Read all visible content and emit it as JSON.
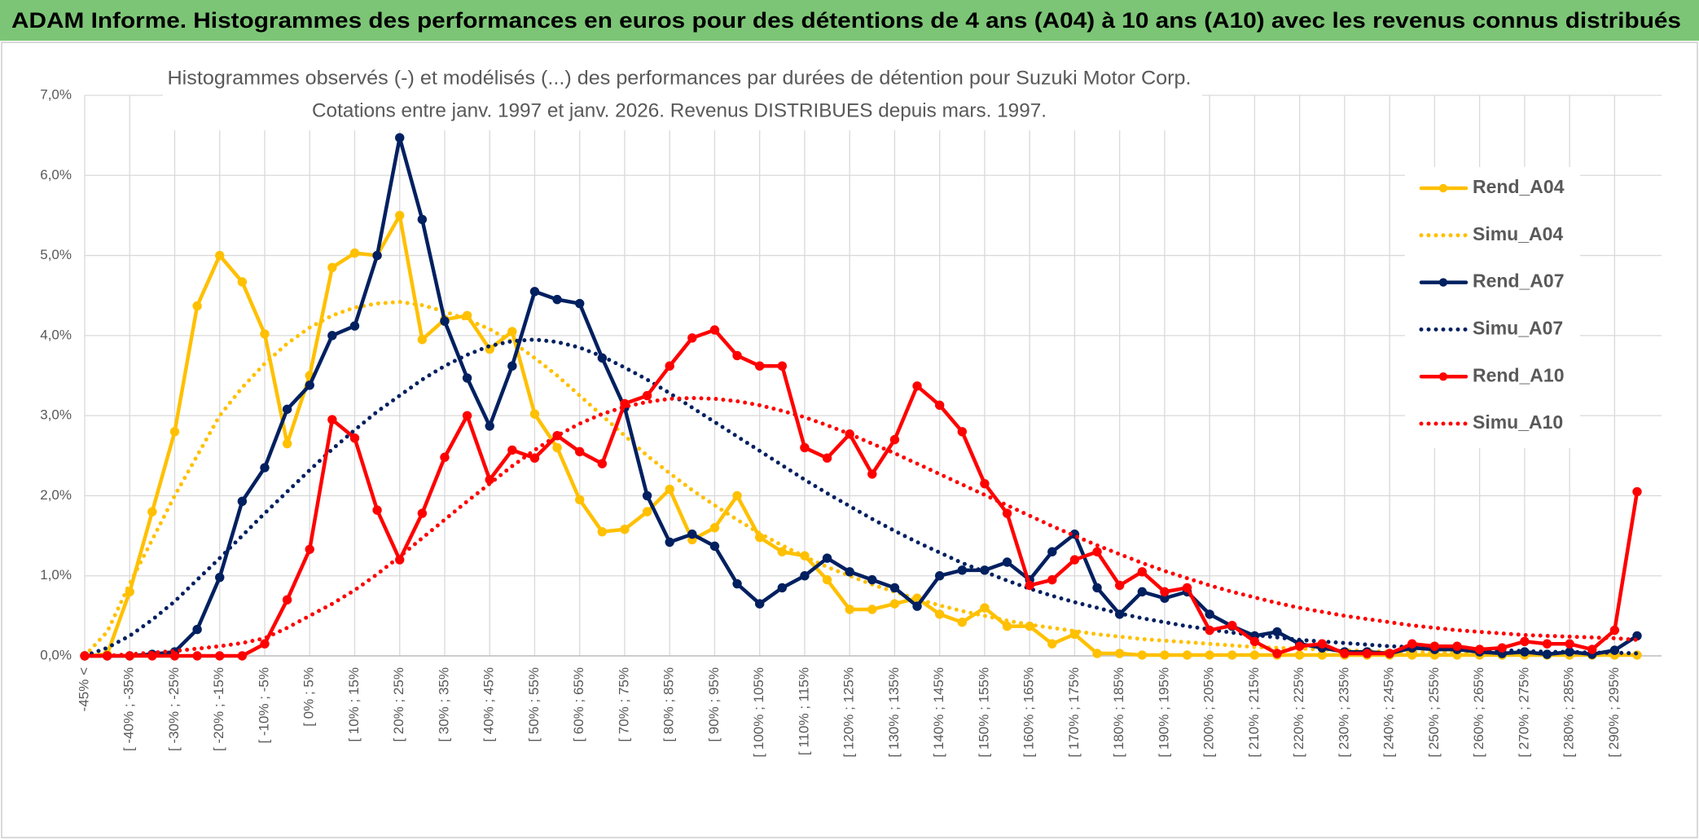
{
  "chart_data": {
    "type": "line",
    "title": "ADAM Informe. Histogrammes des performances en euros pour des détentions de 4 ans (A04) à 10 ans (A10) avec les revenus connus distribués",
    "subtitle": [
      "Histogrammes observés (-) et modélisés (...) des performances par durées de détention pour Suzuki Motor Corp.",
      "Cotations entre janv. 1997 et janv. 2026. Revenus DISTRIBUES depuis mars. 1997."
    ],
    "categories": [
      "-45% <",
      null,
      "[ -40% ; -35%",
      null,
      "[ -30% ; -25%",
      null,
      "[ -20% ; -15%",
      null,
      "[ -10% ; -5%",
      null,
      "[ 0% ; 5%",
      null,
      "[ 10% ; 15%",
      null,
      "[ 20% ; 25%",
      null,
      "[ 30% ; 35%",
      null,
      "[ 40% ; 45%",
      null,
      "[ 50% ; 55%",
      null,
      "[ 60% ; 65%",
      null,
      "[ 70% ; 75%",
      null,
      "[ 80% ; 85%",
      null,
      "[ 90% ; 95%",
      null,
      "[ 100% ; 105%",
      null,
      "[ 110% ; 115%",
      null,
      "[ 120% ; 125%",
      null,
      "[ 130% ; 135%",
      null,
      "[ 140% ; 145%",
      null,
      "[ 150% ; 155%",
      null,
      "[ 160% ; 165%",
      null,
      "[ 170% ; 175%",
      null,
      "[ 180% ; 185%",
      null,
      "[ 190% ; 195%",
      null,
      "[ 200% ; 205%",
      null,
      "[ 210% ; 215%",
      null,
      "[ 220% ; 225%",
      null,
      "[ 230% ; 235%",
      null,
      "[ 240% ; 245%",
      null,
      "[ 250% ; 255%",
      null,
      "[ 260% ; 265%",
      null,
      "[ 270% ; 275%",
      null,
      "[ 280% ; 285%",
      null,
      "[ 290% ; 295%",
      null
    ],
    "series": [
      {
        "name": "Rend_A04",
        "color": "#ffc000",
        "line_style": "solid",
        "markers": true,
        "values": [
          0,
          0.02,
          0.8,
          1.8,
          2.8,
          4.37,
          5.0,
          4.67,
          4.02,
          2.65,
          3.5,
          4.85,
          5.03,
          5.0,
          5.5,
          3.95,
          4.2,
          4.25,
          3.83,
          4.05,
          3.02,
          2.6,
          1.95,
          1.55,
          1.58,
          1.8,
          2.08,
          1.45,
          1.6,
          2.0,
          1.48,
          1.3,
          1.25,
          0.95,
          0.58,
          0.58,
          0.65,
          0.72,
          0.52,
          0.42,
          0.6,
          0.37,
          0.37,
          0.15,
          0.27,
          0.03,
          0.03,
          0.01,
          0.01,
          0.01,
          0.01,
          0.01,
          0.01,
          0.01,
          0.01,
          0.01,
          0.01,
          0.01,
          0.01,
          0.01,
          0.01,
          0.01,
          0.01,
          0.01,
          0.01,
          0.01,
          0.01,
          0.01,
          0.01,
          0.01
        ]
      },
      {
        "name": "Simu_A04",
        "color": "#ffc000",
        "line_style": "dotted",
        "markers": false,
        "values": [
          0,
          0.3,
          0.9,
          1.45,
          2.0,
          2.5,
          3.0,
          3.35,
          3.65,
          3.9,
          4.1,
          4.25,
          4.35,
          4.4,
          4.42,
          4.38,
          4.3,
          4.2,
          4.08,
          3.92,
          3.72,
          3.5,
          3.25,
          3.0,
          2.75,
          2.5,
          2.28,
          2.07,
          1.88,
          1.7,
          1.53,
          1.38,
          1.24,
          1.11,
          1.0,
          0.89,
          0.8,
          0.71,
          0.63,
          0.56,
          0.5,
          0.44,
          0.39,
          0.35,
          0.31,
          0.27,
          0.24,
          0.21,
          0.19,
          0.17,
          0.15,
          0.13,
          0.11,
          0.1,
          0.09,
          0.08,
          0.07,
          0.06,
          0.05,
          0.05,
          0.04,
          0.04,
          0.03,
          0.03,
          0.03,
          0.02,
          0.02,
          0.02,
          0.02,
          0.01
        ]
      },
      {
        "name": "Rend_A07",
        "color": "#002060",
        "line_style": "solid",
        "markers": true,
        "values": [
          0,
          0,
          0,
          0.02,
          0.05,
          0.33,
          0.98,
          1.93,
          2.35,
          3.08,
          3.38,
          4.0,
          4.12,
          5.0,
          6.47,
          5.45,
          4.18,
          3.47,
          2.87,
          3.62,
          4.55,
          4.45,
          4.4,
          3.72,
          3.1,
          2.0,
          1.42,
          1.52,
          1.37,
          0.9,
          0.65,
          0.85,
          1.0,
          1.22,
          1.05,
          0.95,
          0.85,
          0.62,
          1.0,
          1.07,
          1.07,
          1.17,
          0.95,
          1.3,
          1.52,
          0.85,
          0.52,
          0.8,
          0.72,
          0.8,
          0.52,
          0.37,
          0.25,
          0.3,
          0.15,
          0.1,
          0.05,
          0.05,
          0.03,
          0.1,
          0.08,
          0.08,
          0.05,
          0.03,
          0.05,
          0.02,
          0.05,
          0.02,
          0.07,
          0.25
        ]
      },
      {
        "name": "Simu_A07",
        "color": "#002060",
        "line_style": "dotted",
        "markers": false,
        "values": [
          0,
          0.1,
          0.25,
          0.45,
          0.68,
          0.95,
          1.22,
          1.5,
          1.78,
          2.05,
          2.32,
          2.58,
          2.82,
          3.05,
          3.25,
          3.45,
          3.62,
          3.76,
          3.87,
          3.93,
          3.95,
          3.92,
          3.85,
          3.74,
          3.6,
          3.45,
          3.28,
          3.1,
          2.92,
          2.74,
          2.56,
          2.38,
          2.2,
          2.03,
          1.87,
          1.71,
          1.56,
          1.42,
          1.29,
          1.16,
          1.05,
          0.94,
          0.84,
          0.75,
          0.67,
          0.6,
          0.53,
          0.47,
          0.42,
          0.37,
          0.33,
          0.29,
          0.26,
          0.23,
          0.2,
          0.18,
          0.16,
          0.14,
          0.12,
          0.11,
          0.1,
          0.09,
          0.08,
          0.07,
          0.06,
          0.05,
          0.05,
          0.04,
          0.04,
          0.03
        ]
      },
      {
        "name": "Rend_A10",
        "color": "#ff0000",
        "line_style": "solid",
        "markers": true,
        "values": [
          0,
          0,
          0,
          0,
          0,
          0,
          0,
          0,
          0.15,
          0.7,
          1.33,
          2.95,
          2.72,
          1.82,
          1.2,
          1.78,
          2.48,
          3.0,
          2.2,
          2.57,
          2.47,
          2.75,
          2.55,
          2.4,
          3.15,
          3.25,
          3.62,
          3.97,
          4.07,
          3.75,
          3.62,
          3.62,
          2.6,
          2.47,
          2.77,
          2.27,
          2.7,
          3.37,
          3.13,
          2.8,
          2.15,
          1.78,
          0.88,
          0.95,
          1.2,
          1.3,
          0.88,
          1.05,
          0.8,
          0.85,
          0.32,
          0.38,
          0.18,
          0.03,
          0.12,
          0.15,
          0.03,
          0.03,
          0.03,
          0.15,
          0.12,
          0.12,
          0.08,
          0.1,
          0.18,
          0.15,
          0.15,
          0.08,
          0.32,
          2.05
        ]
      },
      {
        "name": "Simu_A10",
        "color": "#ff0000",
        "line_style": "dotted",
        "markers": false,
        "values": [
          0,
          0,
          0.02,
          0.04,
          0.06,
          0.09,
          0.12,
          0.16,
          0.22,
          0.35,
          0.5,
          0.65,
          0.82,
          1.02,
          1.24,
          1.47,
          1.7,
          1.93,
          2.15,
          2.37,
          2.57,
          2.75,
          2.9,
          3.02,
          3.11,
          3.17,
          3.21,
          3.22,
          3.21,
          3.18,
          3.13,
          3.06,
          2.98,
          2.88,
          2.77,
          2.65,
          2.53,
          2.4,
          2.27,
          2.14,
          2.01,
          1.88,
          1.75,
          1.62,
          1.5,
          1.38,
          1.27,
          1.16,
          1.06,
          0.97,
          0.88,
          0.8,
          0.73,
          0.66,
          0.6,
          0.55,
          0.5,
          0.46,
          0.42,
          0.38,
          0.35,
          0.32,
          0.3,
          0.28,
          0.26,
          0.25,
          0.24,
          0.23,
          0.22,
          0.2
        ]
      }
    ],
    "ylim": [
      0,
      7
    ],
    "yticks": [
      {
        "value": 0,
        "label": "0,0%"
      },
      {
        "value": 1,
        "label": "1,0%"
      },
      {
        "value": 2,
        "label": "2,0%"
      },
      {
        "value": 3,
        "label": "3,0%"
      },
      {
        "value": 4,
        "label": "4,0%"
      },
      {
        "value": 5,
        "label": "5,0%"
      },
      {
        "value": 6,
        "label": "6,0%"
      },
      {
        "value": 7,
        "label": "7,0%"
      }
    ],
    "grid": true,
    "legend": "right"
  }
}
